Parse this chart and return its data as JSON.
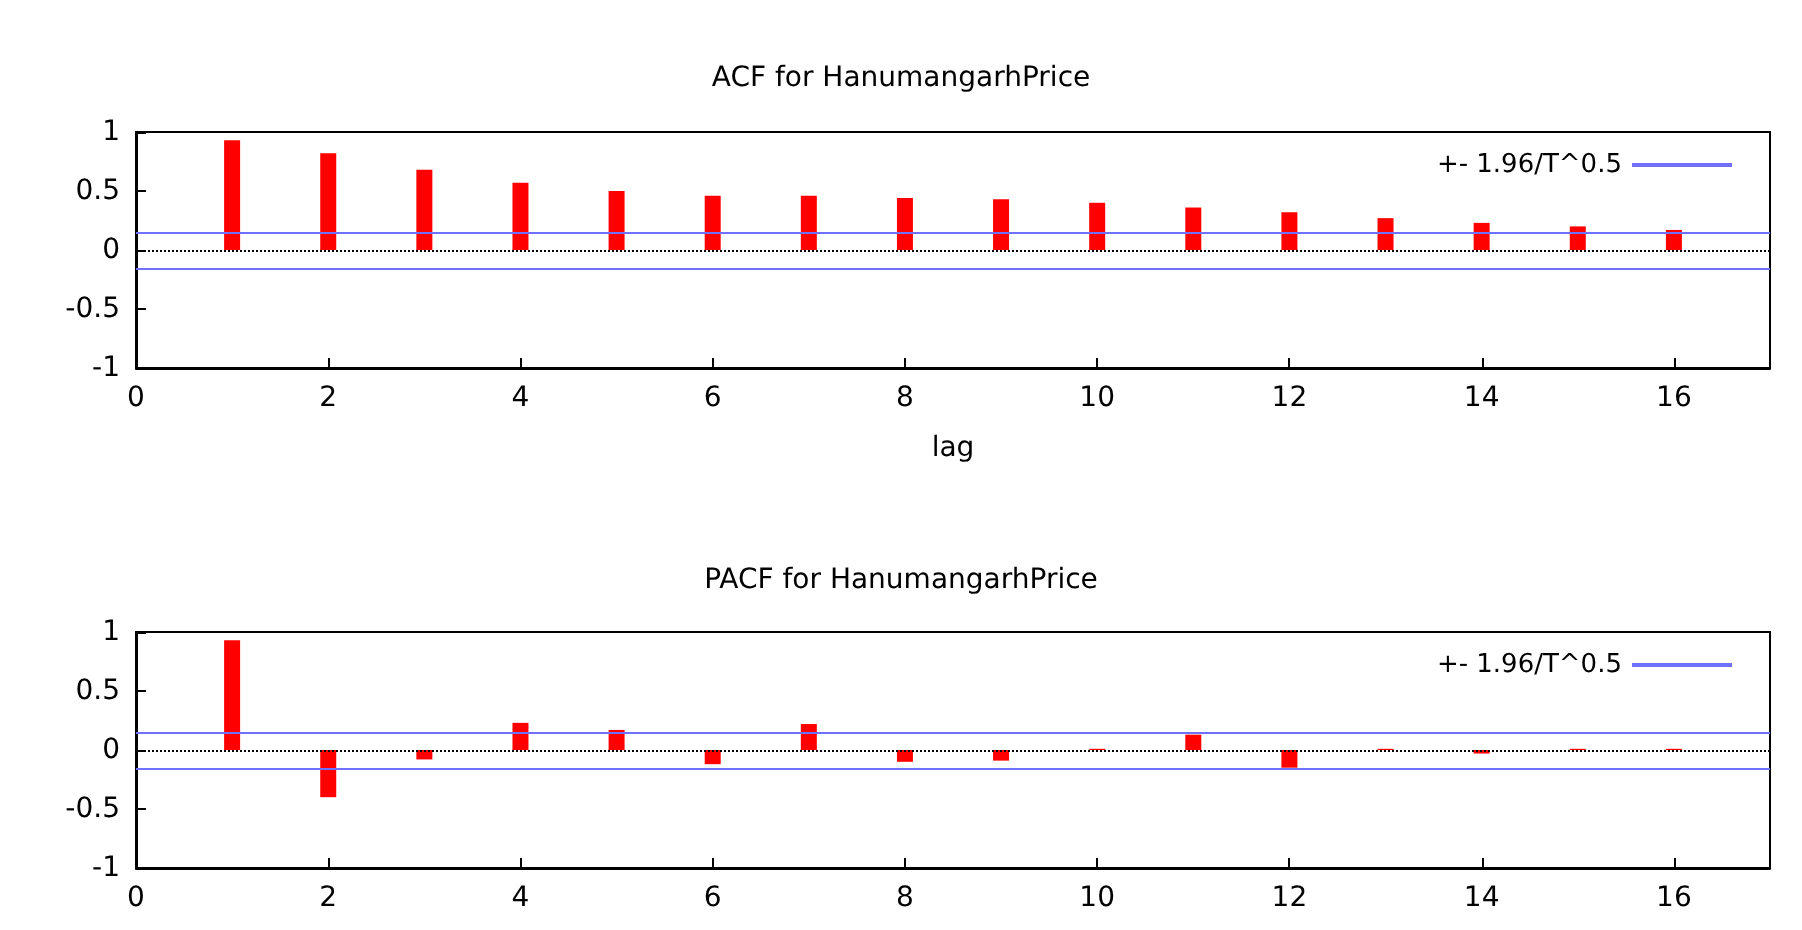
{
  "chart_data": [
    {
      "type": "bar",
      "title": "ACF for HanumangarhPrice",
      "xlabel": "lag",
      "x": [
        1,
        2,
        3,
        4,
        5,
        6,
        7,
        8,
        9,
        10,
        11,
        12,
        13,
        14,
        15,
        16
      ],
      "series": [
        {
          "color": "#ff0000",
          "values": [
            0.93,
            0.82,
            0.68,
            0.57,
            0.5,
            0.46,
            0.46,
            0.44,
            0.43,
            0.4,
            0.36,
            0.32,
            0.27,
            0.23,
            0.2,
            0.17
          ]
        }
      ],
      "xlim": [
        0,
        17
      ],
      "xticks": [
        0,
        2,
        4,
        6,
        8,
        10,
        12,
        14,
        16
      ],
      "ylim": [
        -1,
        1
      ],
      "yticks": [
        -1,
        -0.5,
        0,
        0.5,
        1
      ],
      "ref_lines": [
        {
          "axis": "y",
          "value": 0.15,
          "label": "+- 1.96/T^0.5",
          "color": "#7070ff"
        },
        {
          "axis": "y",
          "value": -0.15,
          "label": null,
          "color": "#7070ff"
        },
        {
          "axis": "y",
          "value": 0,
          "label": null,
          "color": "#000000",
          "line_style": "dotted"
        }
      ],
      "legend": "top right",
      "grid": false
    },
    {
      "type": "bar",
      "title": "PACF for HanumangarhPrice",
      "x": [
        1,
        2,
        3,
        4,
        5,
        6,
        7,
        8,
        9,
        10,
        11,
        12,
        13,
        14,
        15,
        16
      ],
      "series": [
        {
          "color": "#ff0000",
          "values": [
            0.93,
            -0.4,
            -0.08,
            0.23,
            0.17,
            -0.12,
            0.22,
            -0.1,
            -0.09,
            0.01,
            0.13,
            -0.15,
            0.01,
            -0.03,
            0.01,
            0.01
          ]
        }
      ],
      "xlim": [
        0,
        17
      ],
      "xticks": [
        0,
        2,
        4,
        6,
        8,
        10,
        12,
        14,
        16
      ],
      "ylim": [
        -1,
        1
      ],
      "yticks": [
        -1,
        -0.5,
        0,
        0.5,
        1
      ],
      "ref_lines": [
        {
          "axis": "y",
          "value": 0.15,
          "label": "+- 1.96/T^0.5",
          "color": "#7070ff"
        },
        {
          "axis": "y",
          "value": -0.15,
          "label": null,
          "color": "#7070ff"
        },
        {
          "axis": "y",
          "value": 0,
          "label": null,
          "color": "#000000",
          "line_style": "dotted"
        }
      ],
      "legend": "top right",
      "grid": false
    }
  ]
}
